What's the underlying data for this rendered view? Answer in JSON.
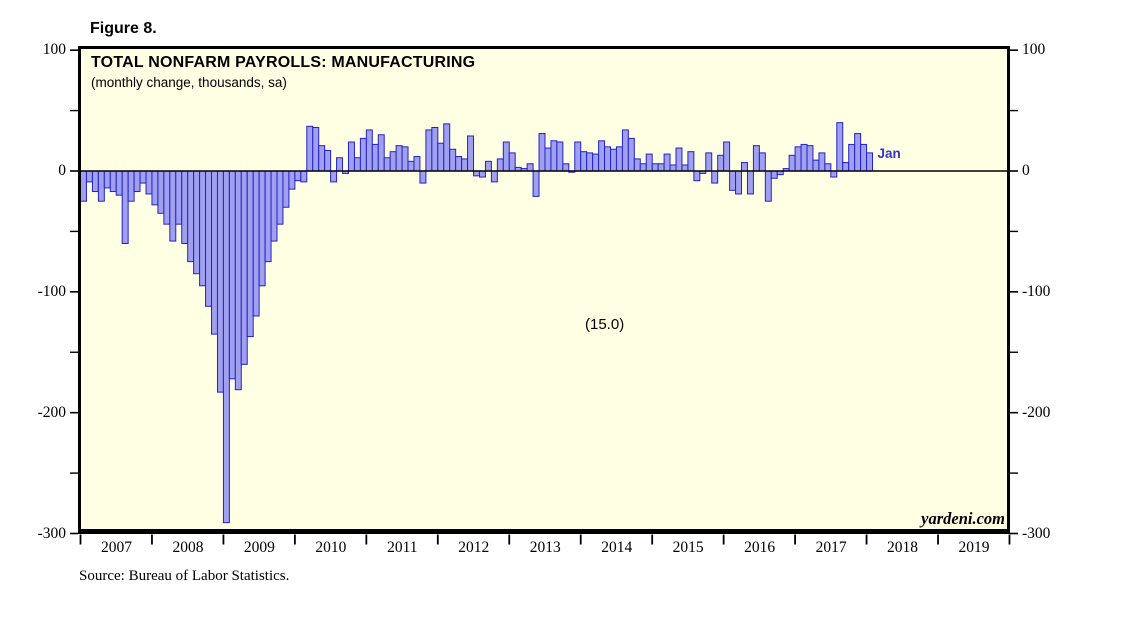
{
  "figure": {
    "label": "Figure 8."
  },
  "chart_data": {
    "type": "bar",
    "title": "TOTAL NONFARM PAYROLLS: MANUFACTURING",
    "subtitle": "(monthly change, thousands, sa)",
    "ylabel": "monthly change, thousands, sa",
    "ylim": [
      -300,
      100
    ],
    "yticks": [
      100,
      0,
      -100,
      -200,
      -300
    ],
    "ytick_labels": [
      "100",
      "0",
      "-100",
      "-200",
      "-300"
    ],
    "minor_yticks": [
      50,
      -50,
      -150,
      -250
    ],
    "x_year_labels": [
      "2007",
      "2008",
      "2009",
      "2010",
      "2011",
      "2012",
      "2013",
      "2014",
      "2015",
      "2016",
      "2017",
      "2018",
      "2019"
    ],
    "x_axis_end_year": 2020,
    "start_month": "2007-01",
    "end_month": "2018-01",
    "grid": false,
    "legend": "none",
    "series": [
      {
        "name": "Total nonfarm payrolls: manufacturing (monthly change, thousands, sa)",
        "values": [
          -25,
          -9,
          -17,
          -25,
          -14,
          -17,
          -20,
          -60,
          -25,
          -17,
          -10,
          -19,
          -28,
          -35,
          -44,
          -58,
          -44,
          -60,
          -75,
          -85,
          -95,
          -112,
          -135,
          -183,
          -291,
          -172,
          -181,
          -160,
          -137,
          -120,
          -95,
          -75,
          -58,
          -44,
          -30,
          -15,
          -8,
          -9,
          37,
          36,
          21,
          17,
          -9,
          11,
          -2,
          24,
          11,
          27,
          34,
          22,
          30,
          11,
          16,
          21,
          20,
          8,
          12,
          -10,
          34,
          36,
          23,
          39,
          18,
          12,
          10,
          29,
          -4,
          -5,
          8,
          -9,
          10,
          24,
          15,
          3,
          2,
          6,
          -21,
          31,
          19,
          25,
          24,
          6,
          -1,
          24,
          16,
          15,
          14,
          25,
          20,
          18,
          20,
          34,
          27,
          10,
          6,
          14,
          6,
          6,
          14,
          5,
          19,
          5,
          16,
          -8,
          -2,
          15,
          -10,
          13,
          24,
          -16,
          -19,
          7,
          -19,
          21,
          15,
          -25,
          -6,
          -3,
          2,
          13,
          20,
          22,
          21,
          9,
          15,
          6,
          -5,
          40,
          7,
          22,
          31,
          22,
          15
        ]
      }
    ],
    "last_point_label": "Jan",
    "last_point_value": 15.0,
    "annotation": "(15.0)",
    "colors": {
      "bar_fill": "#a0a0ee",
      "bar_border": "#2222cc",
      "plot_background": "#ffffe4",
      "frame": "#000000",
      "zero_line": "#000000",
      "last_point_label_color": "#3333cc"
    }
  },
  "watermark": "yardeni.com",
  "source_note": "Source: Bureau of Labor Statistics."
}
